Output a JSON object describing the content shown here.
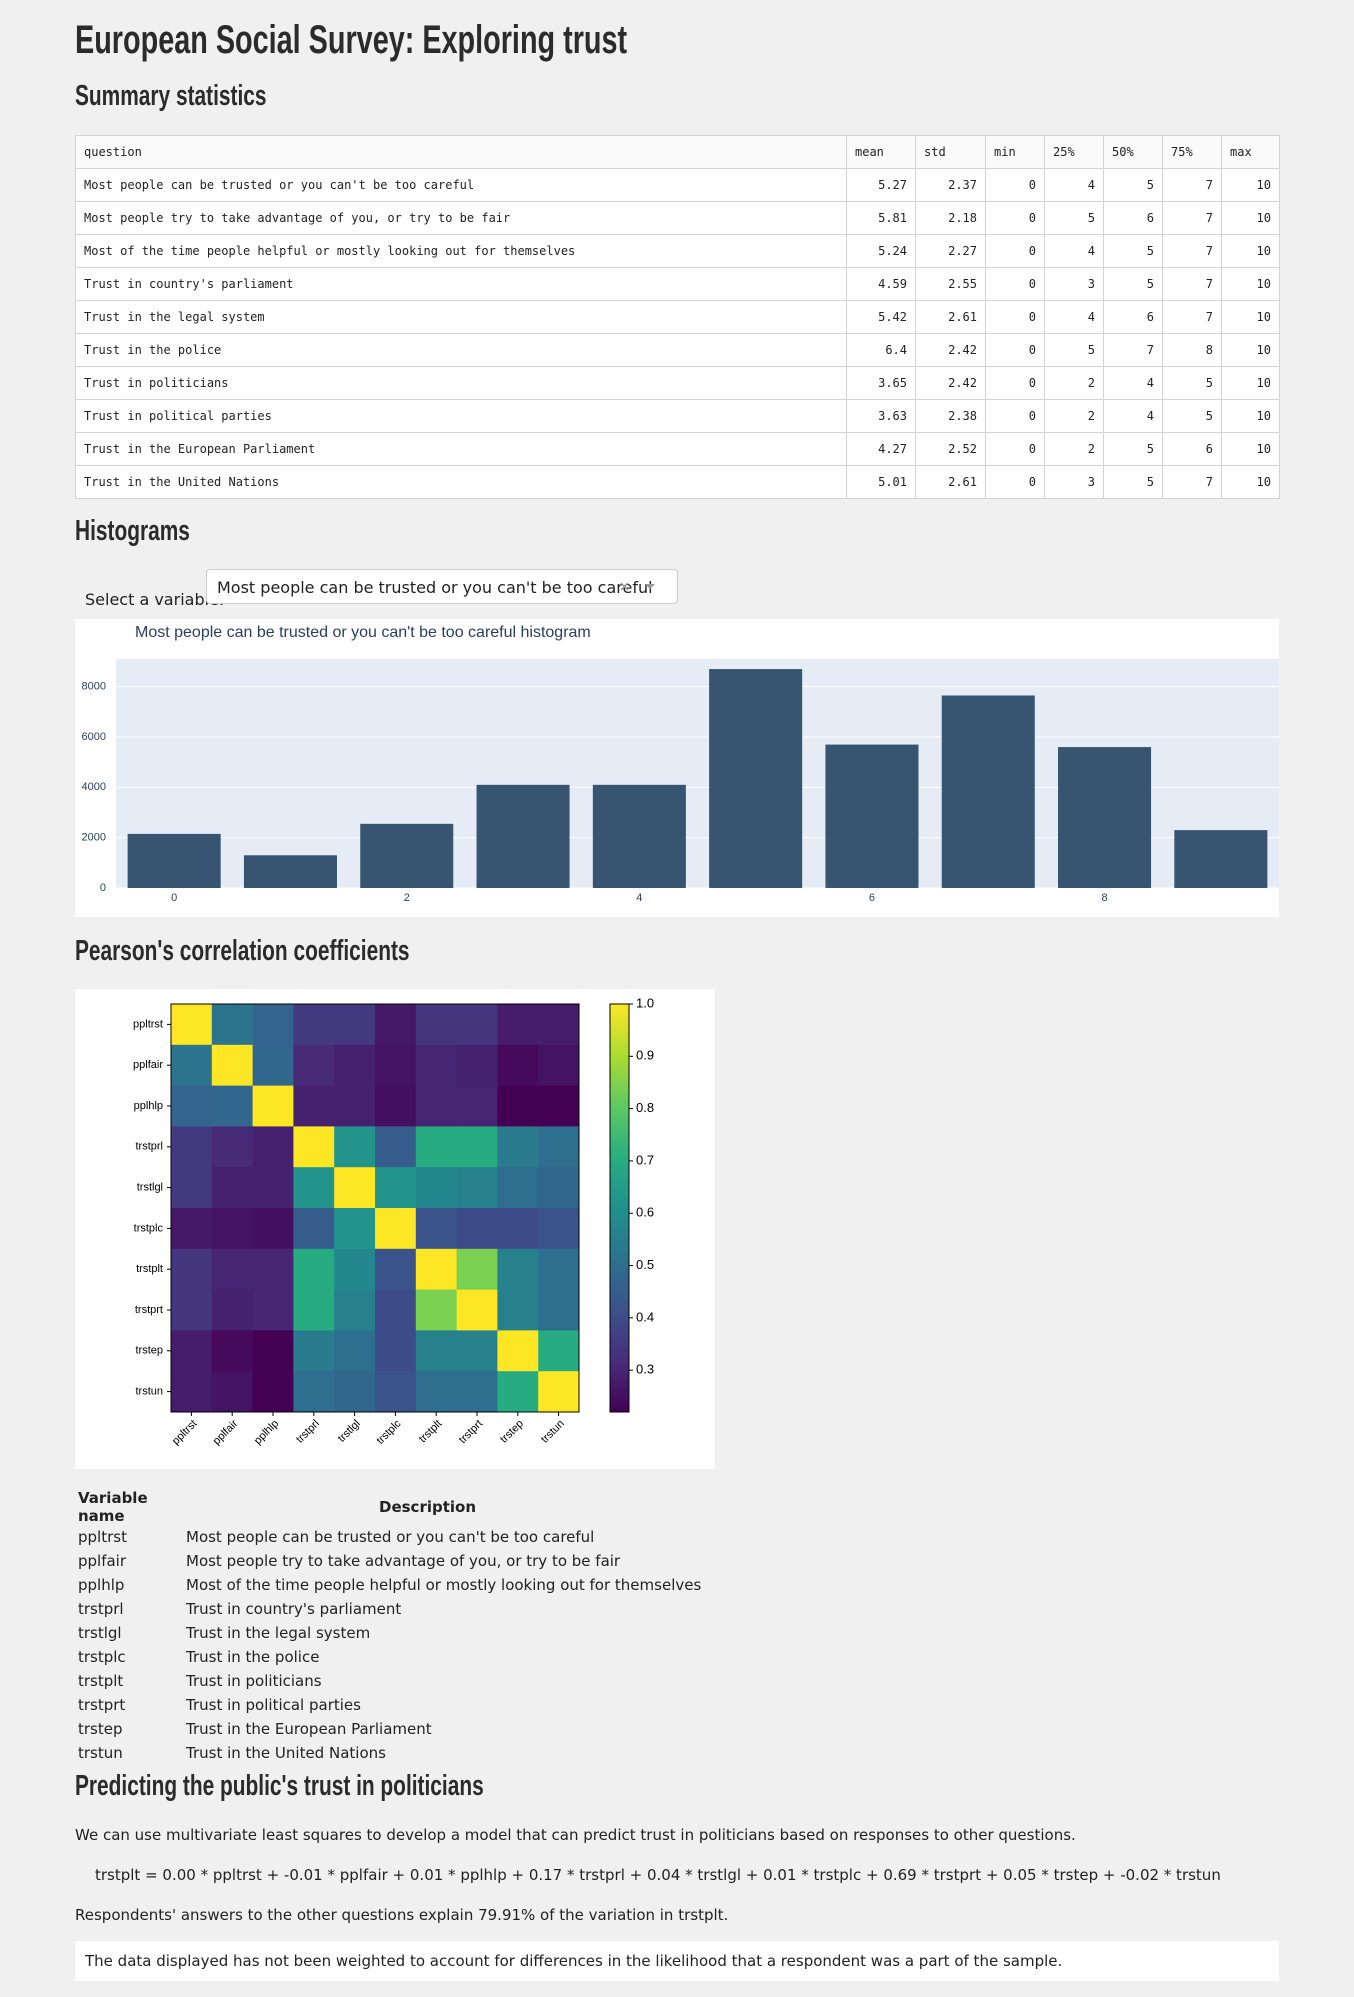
{
  "header": {
    "title": "European Social Survey: Exploring trust"
  },
  "summary": {
    "heading": "Summary statistics",
    "columns": [
      "question",
      "mean",
      "std",
      "min",
      "25%",
      "50%",
      "75%",
      "max"
    ],
    "rows": [
      [
        "Most people can be trusted or you can't be too careful",
        5.27,
        2.37,
        0,
        4,
        5,
        7,
        10
      ],
      [
        "Most people try to take advantage of you, or try to be fair",
        5.81,
        2.18,
        0,
        5,
        6,
        7,
        10
      ],
      [
        "Most of the time people helpful or mostly looking out for themselves",
        5.24,
        2.27,
        0,
        4,
        5,
        7,
        10
      ],
      [
        "Trust in country's parliament",
        4.59,
        2.55,
        0,
        3,
        5,
        7,
        10
      ],
      [
        "Trust in the legal system",
        5.42,
        2.61,
        0,
        4,
        6,
        7,
        10
      ],
      [
        "Trust in the police",
        6.4,
        2.42,
        0,
        5,
        7,
        8,
        10
      ],
      [
        "Trust in politicians",
        3.65,
        2.42,
        0,
        2,
        4,
        5,
        10
      ],
      [
        "Trust in political parties",
        3.63,
        2.38,
        0,
        2,
        4,
        5,
        10
      ],
      [
        "Trust in the European Parliament",
        4.27,
        2.52,
        0,
        2,
        5,
        6,
        10
      ],
      [
        "Trust in the United Nations",
        5.01,
        2.61,
        0,
        3,
        5,
        7,
        10
      ]
    ]
  },
  "histograms": {
    "heading": "Histograms",
    "select_label": "Select a variable:",
    "selected": "Most people can be trusted or you can't be too careful"
  },
  "correlation": {
    "heading": "Pearson's correlation coefficients"
  },
  "variables": {
    "columns": [
      "Variable name",
      "Description"
    ],
    "rows": [
      [
        "ppltrst",
        "Most people can be trusted or you can't be too careful"
      ],
      [
        "pplfair",
        "Most people try to take advantage of you, or try to be fair"
      ],
      [
        "pplhlp",
        "Most of the time people helpful or mostly looking out for themselves"
      ],
      [
        "trstprl",
        "Trust in country's parliament"
      ],
      [
        "trstlgl",
        "Trust in the legal system"
      ],
      [
        "trstplc",
        "Trust in the police"
      ],
      [
        "trstplt",
        "Trust in politicians"
      ],
      [
        "trstprt",
        "Trust in political parties"
      ],
      [
        "trstep",
        "Trust in the European Parliament"
      ],
      [
        "trstun",
        "Trust in the United Nations"
      ]
    ]
  },
  "prediction": {
    "heading": "Predicting the public's trust in politicians",
    "intro": "We can use multivariate least squares to develop a model that can predict trust in politicians based on responses to other questions.",
    "equation": "trstplt = 0.00 * ppltrst + -0.01 * pplfair + 0.01 * pplhlp + 0.17 * trstprl + 0.04 * trstlgl + 0.01 * trstplc + 0.69 * trstprt + 0.05 * trstep + -0.02 * trstun",
    "result": "Respondents' answers to the other questions explain 79.91% of the variation in trstplt.",
    "note": "The data displayed has not been weighted to account for differences in the likelihood that a respondent was a part of the sample."
  },
  "chart_data": [
    {
      "type": "bar",
      "title": "Most people can be trusted or you can't be too careful histogram",
      "x": [
        0,
        1,
        2,
        3,
        4,
        5,
        6,
        7,
        8,
        9
      ],
      "values": [
        2150,
        1300,
        2550,
        4100,
        4100,
        8700,
        5700,
        7650,
        5600,
        2300
      ],
      "color": "#375571",
      "xlim": [
        -0.5,
        9.5
      ],
      "xticks": [
        0,
        2,
        4,
        6,
        8
      ],
      "ylim": [
        0,
        9100
      ],
      "yticks": [
        0,
        2000,
        4000,
        6000,
        8000
      ],
      "grid": true
    },
    {
      "type": "heatmap",
      "categories": [
        "ppltrst",
        "pplfair",
        "pplhlp",
        "trstprl",
        "trstlgl",
        "trstplc",
        "trstplt",
        "trstprt",
        "trstep",
        "trstun"
      ],
      "values": [
        [
          1,
          0.52,
          0.47,
          0.35,
          0.35,
          0.27,
          0.34,
          0.34,
          0.28,
          0.28
        ],
        [
          0.52,
          1,
          0.48,
          0.31,
          0.29,
          0.26,
          0.3,
          0.29,
          0.24,
          0.26
        ],
        [
          0.47,
          0.48,
          1,
          0.29,
          0.29,
          0.25,
          0.3,
          0.3,
          0.22,
          0.22
        ],
        [
          0.35,
          0.31,
          0.29,
          1,
          0.62,
          0.45,
          0.7,
          0.7,
          0.54,
          0.5
        ],
        [
          0.35,
          0.29,
          0.29,
          0.62,
          1,
          0.62,
          0.58,
          0.56,
          0.5,
          0.48
        ],
        [
          0.27,
          0.26,
          0.25,
          0.45,
          0.62,
          1,
          0.42,
          0.4,
          0.4,
          0.42
        ],
        [
          0.34,
          0.3,
          0.3,
          0.7,
          0.58,
          0.42,
          1,
          0.84,
          0.56,
          0.5
        ],
        [
          0.34,
          0.29,
          0.3,
          0.7,
          0.56,
          0.4,
          0.84,
          1,
          0.56,
          0.5
        ],
        [
          0.28,
          0.24,
          0.22,
          0.54,
          0.5,
          0.4,
          0.56,
          0.56,
          1,
          0.7
        ],
        [
          0.28,
          0.26,
          0.22,
          0.5,
          0.48,
          0.42,
          0.5,
          0.5,
          0.7,
          1
        ]
      ],
      "colormap": "viridis",
      "clim": [
        0.22,
        1
      ],
      "cticks": [
        0.3,
        0.4,
        0.5,
        0.6,
        0.7,
        0.8,
        0.9,
        {
          "value": 1,
          "label": "1.0"
        }
      ]
    }
  ]
}
